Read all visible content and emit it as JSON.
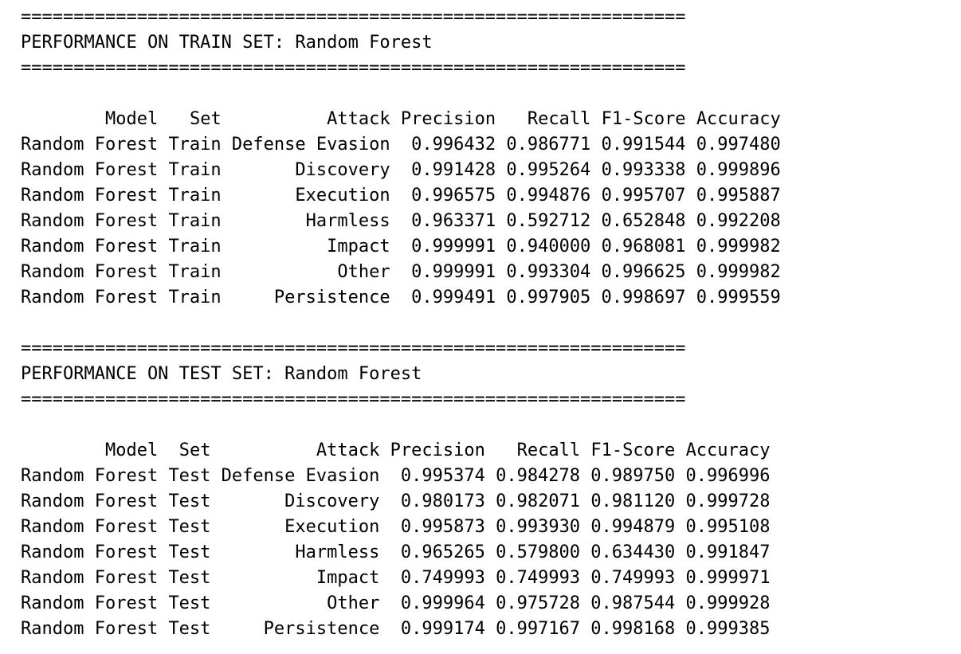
{
  "separator": "===============================================================",
  "sections": [
    {
      "title": "PERFORMANCE ON TRAIN SET: Random Forest",
      "columns": [
        "Model",
        "Set",
        "Attack",
        "Precision",
        "Recall",
        "F1-Score",
        "Accuracy"
      ],
      "rows": [
        [
          "Random Forest",
          "Train",
          "Defense Evasion",
          "0.996432",
          "0.986771",
          "0.991544",
          "0.997480"
        ],
        [
          "Random Forest",
          "Train",
          "Discovery",
          "0.991428",
          "0.995264",
          "0.993338",
          "0.999896"
        ],
        [
          "Random Forest",
          "Train",
          "Execution",
          "0.996575",
          "0.994876",
          "0.995707",
          "0.995887"
        ],
        [
          "Random Forest",
          "Train",
          "Harmless",
          "0.963371",
          "0.592712",
          "0.652848",
          "0.992208"
        ],
        [
          "Random Forest",
          "Train",
          "Impact",
          "0.999991",
          "0.940000",
          "0.968081",
          "0.999982"
        ],
        [
          "Random Forest",
          "Train",
          "Other",
          "0.999991",
          "0.993304",
          "0.996625",
          "0.999982"
        ],
        [
          "Random Forest",
          "Train",
          "Persistence",
          "0.999491",
          "0.997905",
          "0.998697",
          "0.999559"
        ]
      ]
    },
    {
      "title": "PERFORMANCE ON TEST SET: Random Forest",
      "columns": [
        "Model",
        "Set",
        "Attack",
        "Precision",
        "Recall",
        "F1-Score",
        "Accuracy"
      ],
      "rows": [
        [
          "Random Forest",
          "Test",
          "Defense Evasion",
          "0.995374",
          "0.984278",
          "0.989750",
          "0.996996"
        ],
        [
          "Random Forest",
          "Test",
          "Discovery",
          "0.980173",
          "0.982071",
          "0.981120",
          "0.999728"
        ],
        [
          "Random Forest",
          "Test",
          "Execution",
          "0.995873",
          "0.993930",
          "0.994879",
          "0.995108"
        ],
        [
          "Random Forest",
          "Test",
          "Harmless",
          "0.965265",
          "0.579800",
          "0.634430",
          "0.991847"
        ],
        [
          "Random Forest",
          "Test",
          "Impact",
          "0.749993",
          "0.749993",
          "0.749993",
          "0.999971"
        ],
        [
          "Random Forest",
          "Test",
          "Other",
          "0.999964",
          "0.975728",
          "0.987544",
          "0.999928"
        ],
        [
          "Random Forest",
          "Test",
          "Persistence",
          "0.999174",
          "0.997167",
          "0.998168",
          "0.999385"
        ]
      ]
    }
  ]
}
